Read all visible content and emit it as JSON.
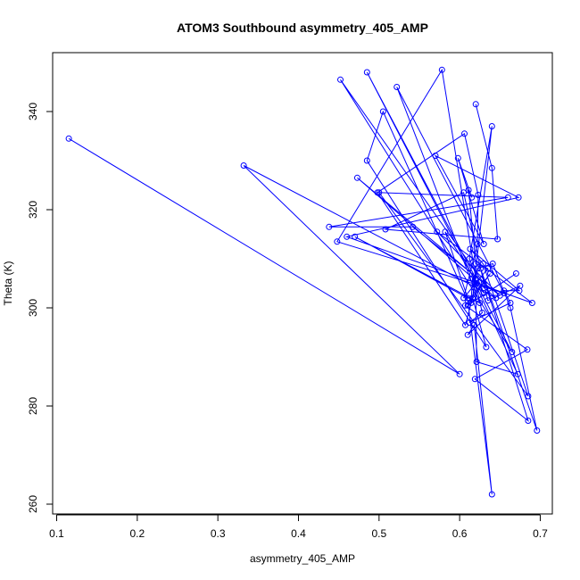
{
  "chart_data": {
    "type": "line",
    "title": "ATOM3 Southbound asymmetry_405_AMP",
    "xlabel": "asymmetry_405_AMP",
    "ylabel": "Theta (K)",
    "xlim": [
      0.095,
      0.715
    ],
    "ylim": [
      258,
      352
    ],
    "xticks": [
      0.1,
      0.2,
      0.3,
      0.4,
      0.5,
      0.6,
      0.7
    ],
    "xtick_labels": [
      "0.1",
      "0.2",
      "0.3",
      "0.4",
      "0.5",
      "0.6",
      "0.7"
    ],
    "yticks": [
      260,
      280,
      300,
      320,
      340
    ],
    "ytick_labels": [
      "260",
      "280",
      "300",
      "320",
      "340"
    ],
    "grid": false,
    "legend": "none",
    "color": "#0000ff",
    "markers": "open-circle",
    "series": [
      {
        "x": [
          0.115,
          0.6,
          0.332,
          0.645,
          0.473,
          0.63,
          0.452,
          0.665,
          0.485,
          0.62,
          0.578,
          0.448,
          0.655,
          0.522,
          0.625,
          0.47,
          0.61,
          0.582,
          0.63,
          0.612,
          0.64,
          0.616,
          0.622,
          0.641,
          0.663,
          0.696,
          0.626,
          0.685,
          0.619,
          0.684,
          0.607,
          0.638,
          0.61,
          0.67,
          0.614,
          0.616,
          0.672,
          0.621,
          0.62,
          0.628,
          0.612,
          0.663,
          0.655,
          0.674,
          0.613,
          0.629,
          0.685,
          0.5,
          0.66,
          0.438,
          0.542,
          0.65,
          0.572,
          0.69,
          0.46,
          0.673,
          0.57,
          0.63,
          0.598,
          0.615,
          0.611,
          0.62,
          0.635,
          0.605,
          0.622,
          0.623,
          0.606,
          0.498,
          0.607,
          0.616,
          0.633,
          0.485,
          0.505,
          0.61,
          0.64,
          0.618,
          0.61,
          0.675,
          0.635,
          0.605,
          0.508,
          0.647,
          0.64,
          0.62
        ],
        "y": [
          334.5,
          286.5,
          329.0,
          302.0,
          326.5,
          305.0,
          346.5,
          291.0,
          348.0,
          306.0,
          348.5,
          313.5,
          303.0,
          345.0,
          301.0,
          314.5,
          302.0,
          315.5,
          303.0,
          310.0,
          337.0,
          302.0,
          308.0,
          309.0,
          300.0,
          275.0,
          308.0,
          277.0,
          285.5,
          291.5,
          300.5,
          307.0,
          300.5,
          307.0,
          301.0,
          306.0,
          286.5,
          289.0,
          305.0,
          299.0,
          297.0,
          301.0,
          303.5,
          303.5,
          312.0,
          309.0,
          282.0,
          323.5,
          322.5,
          316.5,
          316.5,
          302.5,
          315.5,
          301.0,
          314.5,
          322.5,
          331.0,
          313.0,
          330.5,
          322.5,
          324.0,
          309.0,
          308.0,
          302.0,
          313.0,
          323.0,
          335.5,
          323.5,
          296.5,
          302.0,
          292.0,
          330.0,
          340.0,
          301.5,
          262.0,
          296.5,
          294.5,
          304.5,
          301.5,
          323.5,
          316.0,
          314.0,
          328.5,
          341.5
        ]
      }
    ]
  }
}
